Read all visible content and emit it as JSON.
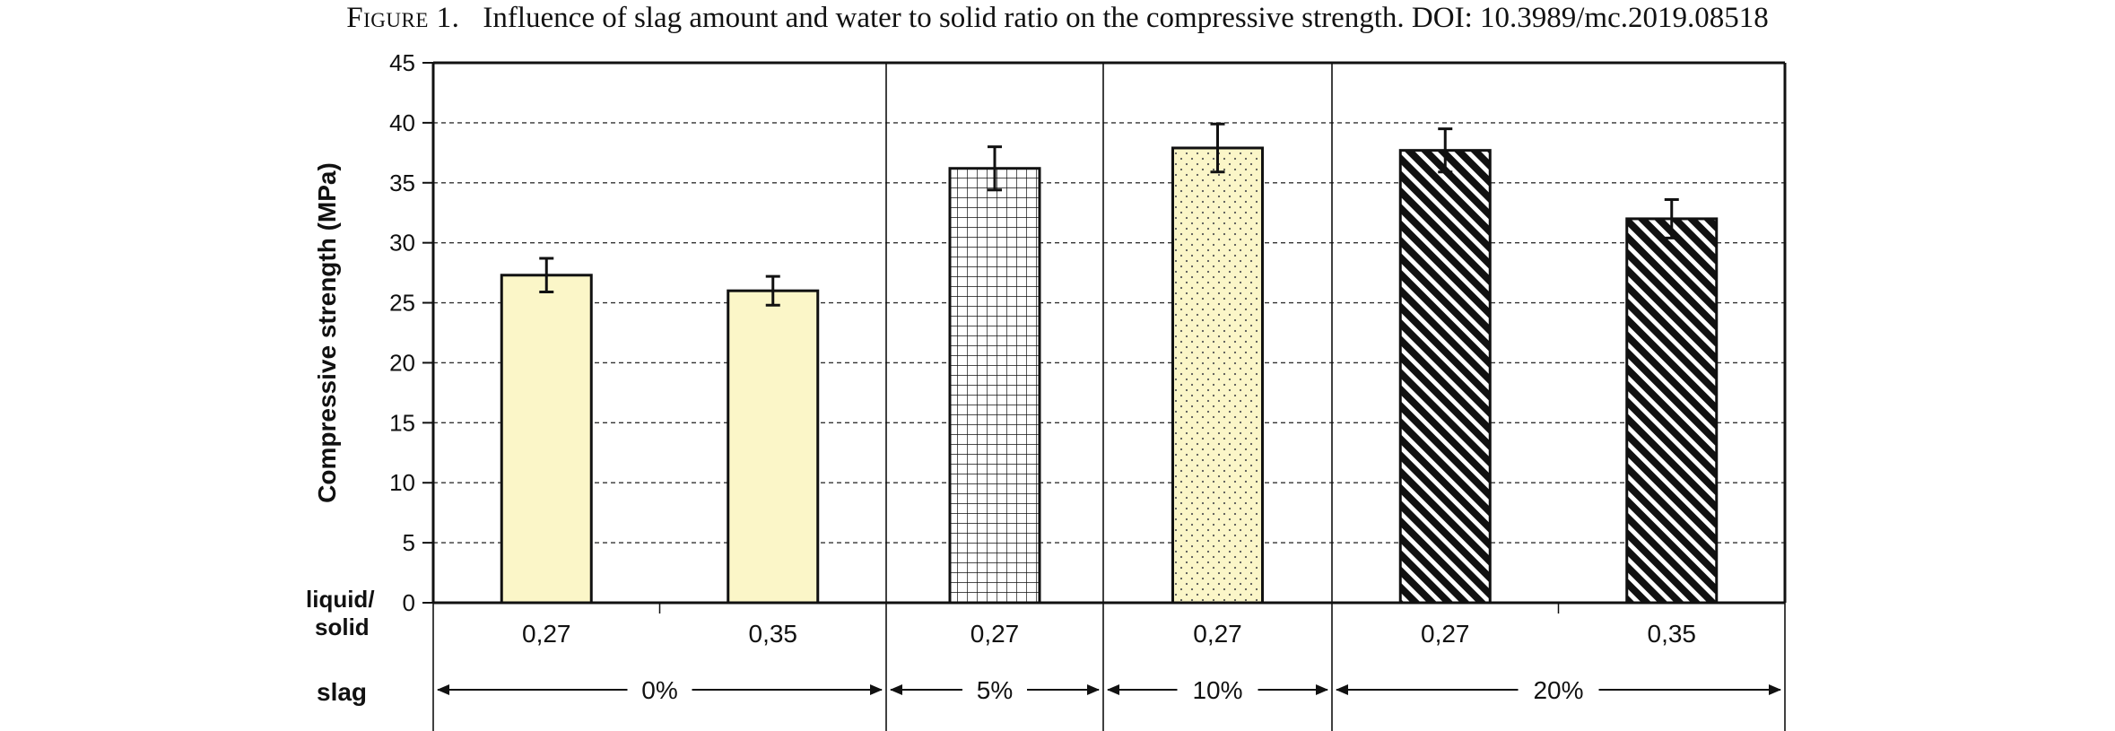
{
  "caption": {
    "figure_label": "Figure 1.",
    "text": "Influence of slag amount and water to solid ratio on the compressive strength. DOI: 10.3989/mc.2019.08518"
  },
  "chart_data": {
    "type": "bar",
    "title": "",
    "ylabel": "Compressive strength (MPa)",
    "ylim": [
      0,
      45
    ],
    "yticks": [
      0,
      5,
      10,
      15,
      20,
      25,
      30,
      35,
      40,
      45
    ],
    "grid": "horizontal dashed",
    "row_labels": {
      "liquid_solid": "liquid/ solid",
      "slag": "slag"
    },
    "groups": [
      {
        "slag": "0%",
        "bars": [
          {
            "ratio": "0,27",
            "value": 27.3,
            "error": 1.4,
            "pattern": "solid"
          },
          {
            "ratio": "0,35",
            "value": 26.0,
            "error": 1.2,
            "pattern": "solid"
          }
        ]
      },
      {
        "slag": "5%",
        "bars": [
          {
            "ratio": "0,27",
            "value": 36.2,
            "error": 1.8,
            "pattern": "grid"
          }
        ]
      },
      {
        "slag": "10%",
        "bars": [
          {
            "ratio": "0,27",
            "value": 37.9,
            "error": 2.0,
            "pattern": "dots"
          }
        ]
      },
      {
        "slag": "20%",
        "bars": [
          {
            "ratio": "0,27",
            "value": 37.7,
            "error": 1.8,
            "pattern": "diagonal"
          },
          {
            "ratio": "0,35",
            "value": 32.0,
            "error": 1.6,
            "pattern": "diagonal"
          }
        ]
      }
    ],
    "colors": {
      "bar_fill": "#fbf6c8",
      "hatch": "#111111",
      "outline": "#111111"
    }
  }
}
